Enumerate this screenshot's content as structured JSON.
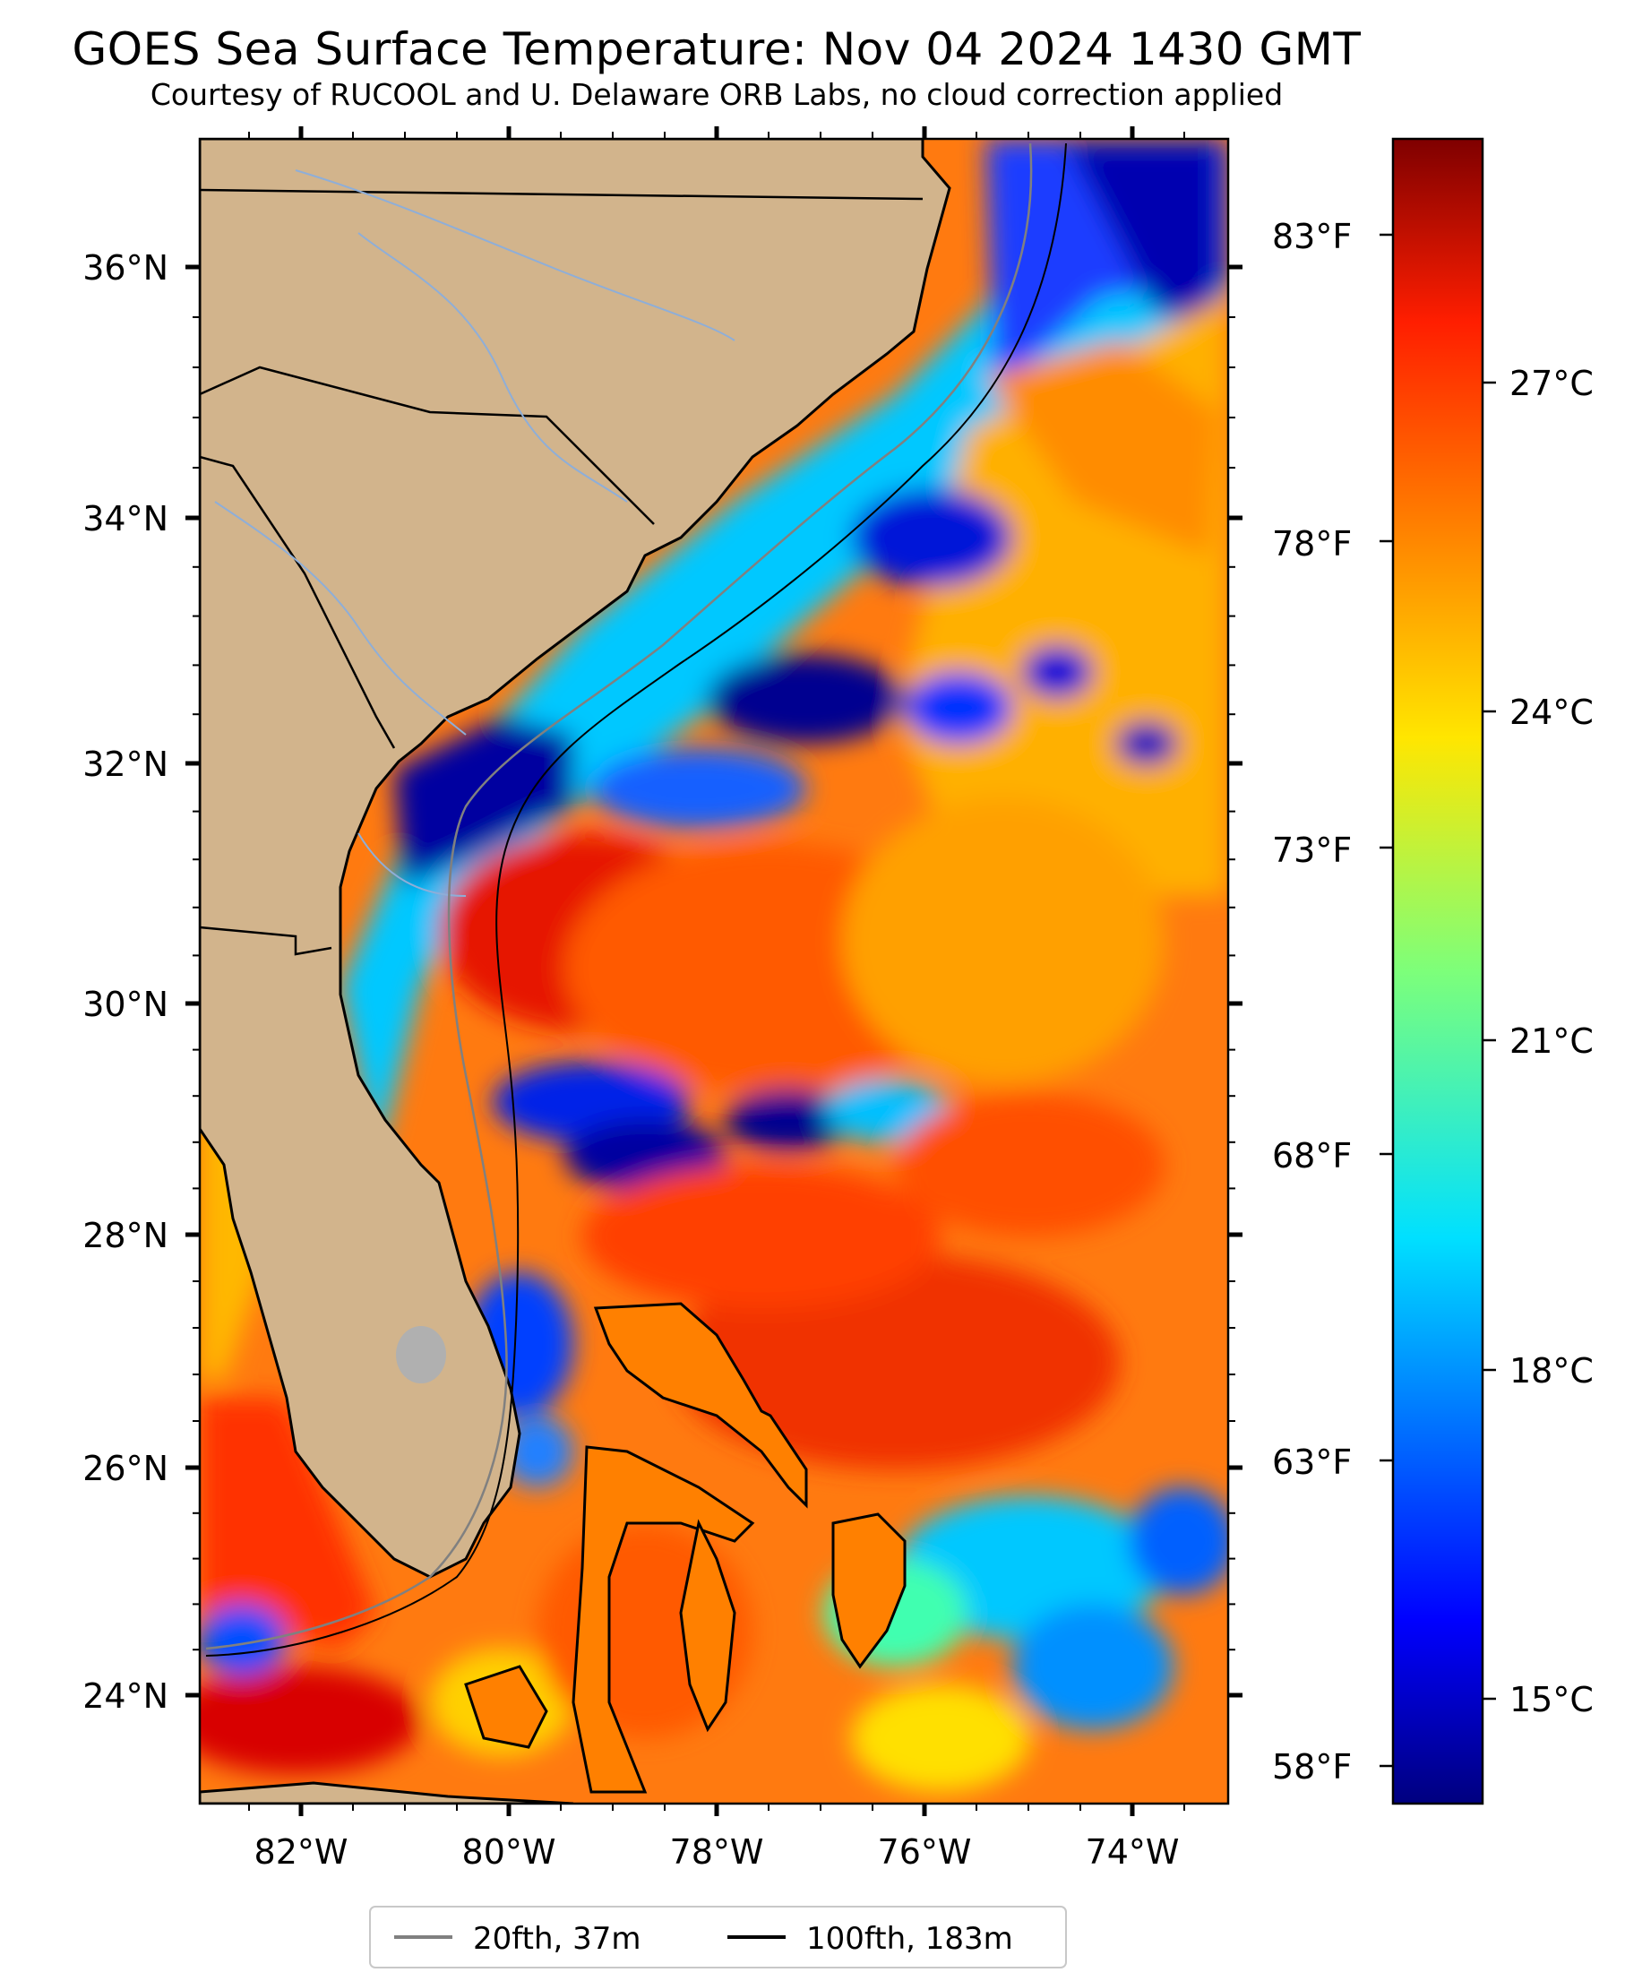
{
  "title": "GOES Sea Surface Temperature: Nov 04 2024 1430 GMT",
  "subtitle": "Courtesy of RUCOOL and U. Delaware ORB Labs, no cloud correction applied",
  "map": {
    "extent_lon": [
      -83,
      -73
    ],
    "extent_lat": [
      23.1,
      37.0
    ],
    "land_color": "#d2b48c",
    "lon_ticks": [
      "82°W",
      "80°W",
      "78°W",
      "76°W",
      "74°W"
    ],
    "lat_ticks": [
      "36°N",
      "34°N",
      "32°N",
      "30°N",
      "28°N",
      "26°N",
      "24°N"
    ]
  },
  "colorbar": {
    "colormap": "jet",
    "range_c": [
      13.9,
      29.5
    ],
    "celsius_ticks": [
      "27°C",
      "24°C",
      "21°C",
      "18°C",
      "15°C"
    ],
    "fahrenheit_ticks": [
      "83°F",
      "78°F",
      "73°F",
      "68°F",
      "63°F",
      "58°F"
    ]
  },
  "legend": {
    "items": [
      {
        "label": "20fth, 37m",
        "color": "#808080"
      },
      {
        "label": "100fth, 183m",
        "color": "#000000"
      }
    ]
  }
}
